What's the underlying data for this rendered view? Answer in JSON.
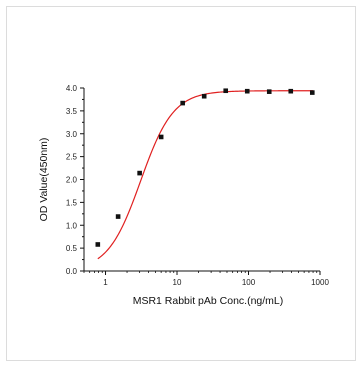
{
  "chart_data": {
    "type": "scatter",
    "title": "",
    "xlabel": "MSR1 Rabbit pAb Conc.(ng/mL)",
    "ylabel": "OD Value(450nm)",
    "x_scale": "log",
    "xlim": [
      0.5,
      1000
    ],
    "ylim": [
      0.0,
      4.0
    ],
    "x_ticks": [
      1,
      10,
      100,
      1000
    ],
    "x_tick_labels": [
      "1",
      "10",
      "100",
      "1000"
    ],
    "y_ticks": [
      0.0,
      0.5,
      1.0,
      1.5,
      2.0,
      2.5,
      3.0,
      3.5,
      4.0
    ],
    "y_tick_labels": [
      "0.0",
      "0.5",
      "1.0",
      "1.5",
      "2.0",
      "2.5",
      "3.0",
      "3.5",
      "4.0"
    ],
    "grid": false,
    "legend": "none",
    "series": [
      {
        "x": [
          0.78,
          1.5,
          3.0,
          6.0,
          12.0,
          24.0,
          48.0,
          96.0,
          195.0,
          390.0,
          780.0
        ],
        "y": [
          0.58,
          1.19,
          2.14,
          2.93,
          3.67,
          3.82,
          3.94,
          3.93,
          3.92,
          3.93,
          3.9
        ],
        "marker": "square",
        "marker_color": "#111111"
      }
    ],
    "fit_curve": {
      "type": "4PL",
      "color": "#e02020",
      "bottom": 0.0,
      "top": 3.94,
      "ec50": 3.1,
      "hill": 1.9
    }
  }
}
